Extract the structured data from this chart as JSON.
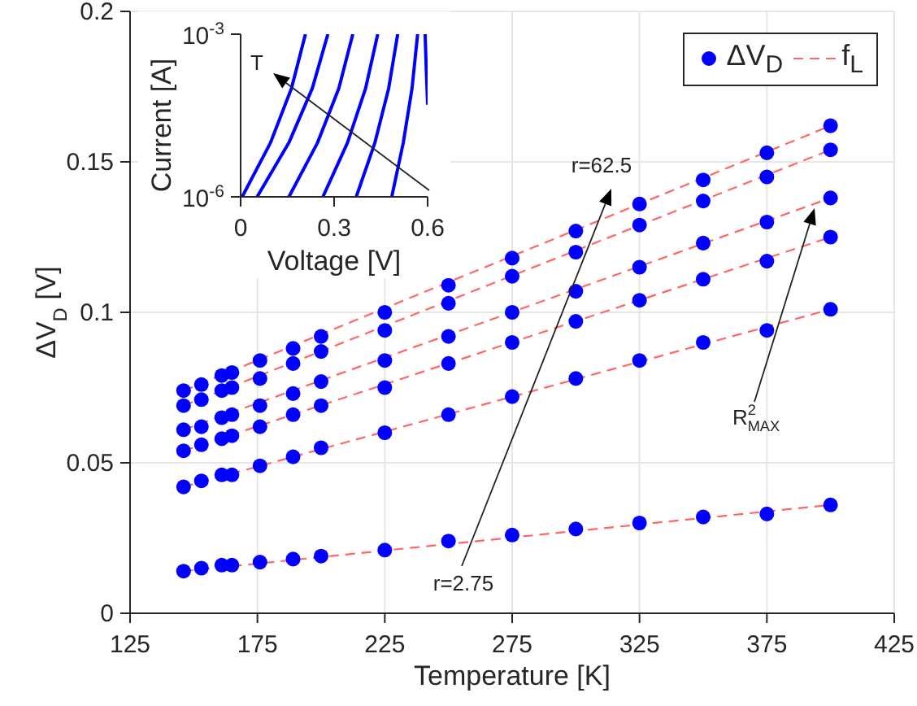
{
  "chart_data": [
    {
      "type": "scatter",
      "xlabel": "Temperature [K]",
      "ylabel": "ΔV$_{D}$ [V]",
      "xlim": [
        125,
        425
      ],
      "xticks": [
        125,
        175,
        225,
        275,
        325,
        375,
        425
      ],
      "ylim": [
        0,
        0.2
      ],
      "yticks": [
        0,
        0.05,
        0.1,
        0.15,
        0.2
      ],
      "grid": true,
      "legend": "top right",
      "marker": "circle",
      "x": [
        146,
        153,
        161,
        165,
        176,
        189,
        200,
        225,
        250,
        275,
        300,
        325,
        350,
        375,
        400
      ],
      "series": [
        {
          "name": "ΔV$_{D}$",
          "color": "#0000ff",
          "values": [
            0.074,
            0.076,
            0.079,
            0.08,
            0.084,
            0.088,
            0.092,
            0.1,
            0.109,
            0.118,
            0.127,
            0.136,
            0.144,
            0.153,
            0.162
          ]
        },
        {
          "color": "#0000ff",
          "values": [
            0.069,
            0.071,
            0.074,
            0.075,
            0.078,
            0.083,
            0.087,
            0.094,
            0.103,
            0.112,
            0.12,
            0.129,
            0.137,
            0.145,
            0.154
          ]
        },
        {
          "color": "#0000ff",
          "values": [
            0.061,
            0.062,
            0.065,
            0.066,
            0.069,
            0.073,
            0.077,
            0.084,
            0.092,
            0.1,
            0.107,
            0.115,
            0.123,
            0.13,
            0.138
          ]
        },
        {
          "color": "#0000ff",
          "values": [
            0.054,
            0.056,
            0.058,
            0.059,
            0.062,
            0.066,
            0.069,
            0.075,
            0.083,
            0.09,
            0.097,
            0.104,
            0.111,
            0.117,
            0.125
          ]
        },
        {
          "color": "#0000ff",
          "values": [
            0.042,
            0.044,
            0.046,
            0.046,
            0.049,
            0.052,
            0.055,
            0.06,
            0.066,
            0.072,
            0.078,
            0.084,
            0.09,
            0.094,
            0.101
          ]
        },
        {
          "color": "#0000ff",
          "values": [
            0.014,
            0.015,
            0.016,
            0.016,
            0.017,
            0.018,
            0.019,
            0.021,
            0.024,
            0.026,
            0.028,
            0.03,
            0.032,
            0.033,
            0.036
          ]
        },
        {
          "type": "line",
          "name": "f$_{L}$",
          "color": "#ff6666",
          "line_style": "dashed",
          "marker": "none",
          "x": [
            146,
            400
          ],
          "values": [
            0.074,
            0.162
          ]
        },
        {
          "type": "line",
          "color": "#ff6666",
          "line_style": "dashed",
          "marker": "none",
          "x": [
            146,
            400
          ],
          "values": [
            0.069,
            0.154
          ]
        },
        {
          "type": "line",
          "color": "#ff6666",
          "line_style": "dashed",
          "marker": "none",
          "x": [
            146,
            400
          ],
          "values": [
            0.061,
            0.138
          ]
        },
        {
          "type": "line",
          "color": "#ff6666",
          "line_style": "dashed",
          "marker": "none",
          "x": [
            146,
            400
          ],
          "values": [
            0.054,
            0.125
          ]
        },
        {
          "type": "line",
          "color": "#ff6666",
          "line_style": "dashed",
          "marker": "none",
          "x": [
            146,
            400
          ],
          "values": [
            0.042,
            0.101
          ]
        },
        {
          "type": "line",
          "color": "#ff6666",
          "line_style": "dashed",
          "marker": "none",
          "x": [
            146,
            400
          ],
          "values": [
            0.014,
            0.036
          ]
        }
      ],
      "annotations": [
        "r=2.75",
        "r=62.5",
        "R$^{2}$$_{MAX}$"
      ]
    },
    {
      "type": "line",
      "xlabel": "Voltage [V]",
      "ylabel": "Current [A]",
      "log": "y",
      "xlim": [
        0,
        0.6
      ],
      "xticks": [
        0,
        0.3,
        0.6
      ],
      "ylim": [
        1e-06,
        0.001
      ],
      "yticks": [
        {
          "value": 1e-06,
          "label": "10$^{-6}$"
        },
        {
          "value": 0.001,
          "label": "10$^{-3}$"
        }
      ],
      "series": [
        {
          "color": "#0000ff",
          "x": [
            0.005,
            0.096,
            0.163,
            0.208
          ],
          "values": [
            1e-06,
            1e-05,
            0.0001,
            0.001
          ]
        },
        {
          "color": "#0000ff",
          "x": [
            0.053,
            0.155,
            0.23,
            0.28
          ],
          "values": [
            1e-06,
            1e-05,
            0.0001,
            0.001
          ]
        },
        {
          "color": "#0000ff",
          "x": [
            0.155,
            0.247,
            0.315,
            0.36
          ],
          "values": [
            1e-06,
            1e-05,
            0.0001,
            0.001
          ]
        },
        {
          "color": "#0000ff",
          "x": [
            0.264,
            0.343,
            0.401,
            0.44
          ],
          "values": [
            1e-06,
            1e-05,
            0.0001,
            0.001
          ]
        },
        {
          "color": "#0000ff",
          "x": [
            0.371,
            0.431,
            0.475,
            0.504
          ],
          "values": [
            1e-06,
            1e-05,
            0.0001,
            0.001
          ]
        },
        {
          "color": "#0000ff",
          "x": [
            0.485,
            0.522,
            0.55,
            0.568
          ],
          "values": [
            1e-06,
            1e-05,
            0.0001,
            0.001
          ]
        },
        {
          "color": "#0000ff",
          "x": [
            0.6,
            0.596,
            0.592
          ],
          "values": [
            5e-05,
            0.0002,
            0.001
          ]
        }
      ],
      "annotations": [
        "T"
      ]
    }
  ]
}
